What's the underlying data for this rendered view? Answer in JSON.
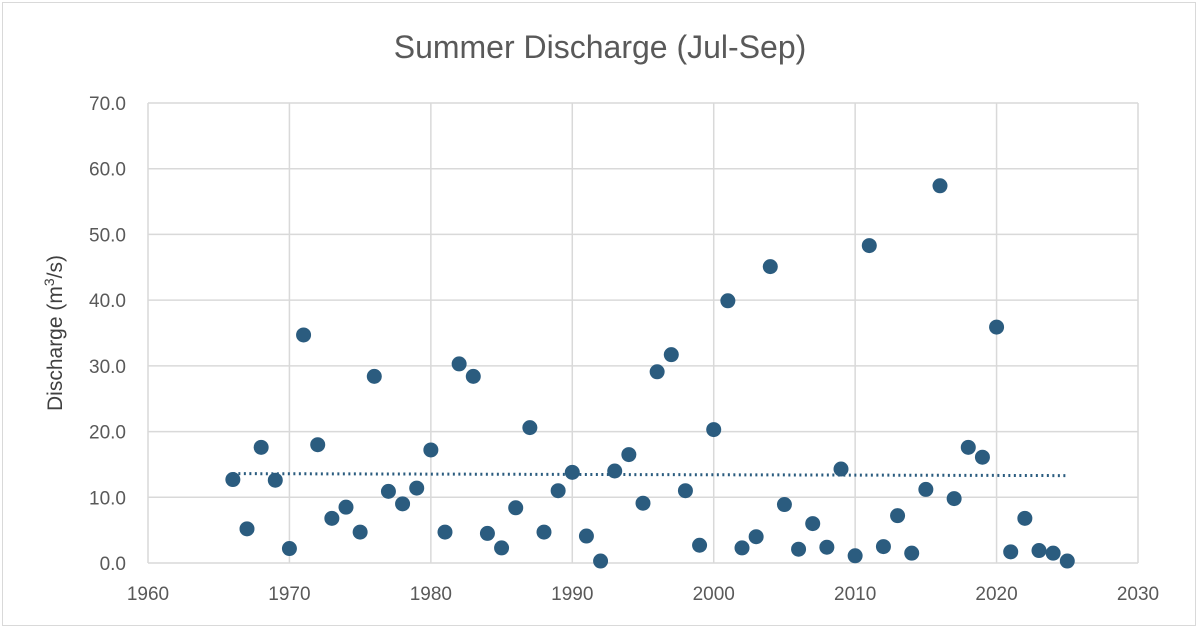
{
  "chart_data": {
    "type": "scatter",
    "title": "Summer Discharge (Jul-Sep)",
    "xlabel": "",
    "ylabel": "Discharge (m3/s)",
    "ylabel_parts": {
      "pre": "Discharge (m",
      "sup": "3",
      "post": "/s)"
    },
    "xlim": [
      1960,
      2030
    ],
    "ylim": [
      0,
      70
    ],
    "xticks": [
      1960,
      1970,
      1980,
      1990,
      2000,
      2010,
      2020,
      2030
    ],
    "yticks": [
      "0.0",
      "10.0",
      "20.0",
      "30.0",
      "40.0",
      "50.0",
      "60.0",
      "70.0"
    ],
    "grid": true,
    "marker_color": "#2b5c7f",
    "trendline": {
      "type": "linear",
      "style": "dotted",
      "color": "#2b5c7f",
      "x": [
        1966,
        2025
      ],
      "y": [
        13.6,
        13.3
      ]
    },
    "series": [
      {
        "name": "Discharge",
        "x": [
          1966,
          1967,
          1968,
          1969,
          1970,
          1971,
          1972,
          1973,
          1974,
          1975,
          1976,
          1977,
          1978,
          1979,
          1980,
          1981,
          1982,
          1983,
          1984,
          1985,
          1986,
          1987,
          1988,
          1989,
          1990,
          1991,
          1992,
          1993,
          1994,
          1995,
          1996,
          1997,
          1998,
          1999,
          2000,
          2001,
          2002,
          2003,
          2004,
          2005,
          2006,
          2007,
          2008,
          2009,
          2010,
          2011,
          2012,
          2013,
          2014,
          2015,
          2016,
          2017,
          2018,
          2019,
          2020,
          2021,
          2022,
          2023,
          2024,
          2025
        ],
        "y": [
          12.7,
          5.2,
          17.6,
          12.6,
          2.2,
          34.7,
          18.0,
          6.8,
          8.5,
          4.7,
          28.4,
          10.9,
          9.0,
          11.4,
          17.2,
          4.7,
          30.3,
          28.4,
          4.5,
          2.3,
          8.4,
          20.6,
          4.7,
          11.0,
          13.8,
          4.1,
          0.3,
          14.0,
          16.5,
          9.1,
          29.1,
          31.7,
          11.0,
          2.7,
          20.3,
          39.9,
          2.3,
          4.0,
          45.1,
          8.9,
          2.1,
          6.0,
          2.4,
          14.3,
          1.1,
          48.3,
          2.5,
          7.2,
          1.5,
          11.2,
          57.4,
          9.8,
          17.6,
          16.1,
          35.9,
          1.7,
          6.8,
          1.9,
          1.5,
          0.3
        ]
      }
    ]
  }
}
